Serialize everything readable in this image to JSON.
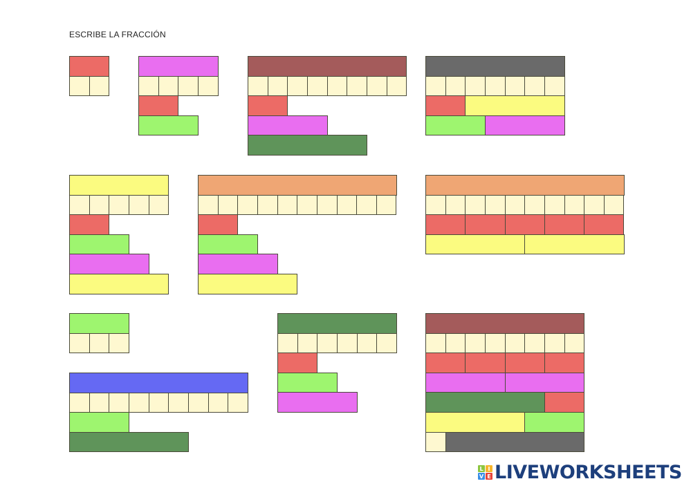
{
  "title": "ESCRIBE LA FRACCIÓN",
  "colors": {
    "red": "#ec6b66",
    "magenta": "#e96ef0",
    "green": "#9ef56f",
    "brown": "#a45b5b",
    "gray": "#6a6a6a",
    "darkgreen": "#5f945a",
    "yellow": "#fbfb80",
    "orange": "#efa674",
    "blue": "#6569f3",
    "cream": "#fef8d0"
  },
  "groups": [
    {
      "rows": [
        [
          [
            2,
            "red"
          ]
        ],
        [
          [
            1,
            "cream"
          ],
          [
            1,
            "cream"
          ]
        ]
      ]
    },
    {
      "rows": [
        [
          [
            4,
            "magenta"
          ]
        ],
        [
          [
            1,
            "cream"
          ],
          [
            1,
            "cream"
          ],
          [
            1,
            "cream"
          ],
          [
            1,
            "cream"
          ]
        ],
        [
          [
            2,
            "red"
          ]
        ],
        [
          [
            3,
            "green"
          ]
        ]
      ]
    },
    {
      "rows": [
        [
          [
            8,
            "brown"
          ]
        ],
        [
          [
            1,
            "cream"
          ],
          [
            1,
            "cream"
          ],
          [
            1,
            "cream"
          ],
          [
            1,
            "cream"
          ],
          [
            1,
            "cream"
          ],
          [
            1,
            "cream"
          ],
          [
            1,
            "cream"
          ],
          [
            1,
            "cream"
          ]
        ],
        [
          [
            2,
            "red"
          ]
        ],
        [
          [
            4,
            "magenta"
          ]
        ],
        [
          [
            6,
            "darkgreen"
          ]
        ]
      ]
    },
    {
      "rows": [
        [
          [
            7,
            "gray"
          ]
        ],
        [
          [
            1,
            "cream"
          ],
          [
            1,
            "cream"
          ],
          [
            1,
            "cream"
          ],
          [
            1,
            "cream"
          ],
          [
            1,
            "cream"
          ],
          [
            1,
            "cream"
          ],
          [
            1,
            "cream"
          ]
        ],
        [
          [
            2,
            "red"
          ],
          [
            5,
            "yellow"
          ]
        ],
        [
          [
            3,
            "green"
          ],
          [
            4,
            "magenta"
          ]
        ]
      ]
    },
    {
      "rows": [
        [
          [
            5,
            "yellow"
          ]
        ],
        [
          [
            1,
            "cream"
          ],
          [
            1,
            "cream"
          ],
          [
            1,
            "cream"
          ],
          [
            1,
            "cream"
          ],
          [
            1,
            "cream"
          ]
        ],
        [
          [
            2,
            "red"
          ]
        ],
        [
          [
            3,
            "green"
          ]
        ],
        [
          [
            4,
            "magenta"
          ]
        ],
        [
          [
            5,
            "yellow"
          ]
        ]
      ]
    },
    {
      "rows": [
        [
          [
            10,
            "orange"
          ]
        ],
        [
          [
            1,
            "cream"
          ],
          [
            1,
            "cream"
          ],
          [
            1,
            "cream"
          ],
          [
            1,
            "cream"
          ],
          [
            1,
            "cream"
          ],
          [
            1,
            "cream"
          ],
          [
            1,
            "cream"
          ],
          [
            1,
            "cream"
          ],
          [
            1,
            "cream"
          ],
          [
            1,
            "cream"
          ]
        ],
        [
          [
            2,
            "red"
          ]
        ],
        [
          [
            3,
            "green"
          ]
        ],
        [
          [
            4,
            "magenta"
          ]
        ],
        [
          [
            5,
            "yellow"
          ]
        ]
      ]
    },
    {
      "rows": [
        [
          [
            10,
            "orange"
          ]
        ],
        [
          [
            1,
            "cream"
          ],
          [
            1,
            "cream"
          ],
          [
            1,
            "cream"
          ],
          [
            1,
            "cream"
          ],
          [
            1,
            "cream"
          ],
          [
            1,
            "cream"
          ],
          [
            1,
            "cream"
          ],
          [
            1,
            "cream"
          ],
          [
            1,
            "cream"
          ],
          [
            1,
            "cream"
          ]
        ],
        [
          [
            2,
            "red"
          ],
          [
            2,
            "red"
          ],
          [
            2,
            "red"
          ],
          [
            2,
            "red"
          ],
          [
            2,
            "red"
          ]
        ],
        [
          [
            5,
            "yellow"
          ],
          [
            5,
            "yellow"
          ]
        ]
      ]
    },
    {
      "rows": [
        [
          [
            3,
            "green"
          ]
        ],
        [
          [
            1,
            "cream"
          ],
          [
            1,
            "cream"
          ],
          [
            1,
            "cream"
          ]
        ]
      ]
    },
    {
      "rows": [
        [
          [
            9,
            "blue"
          ]
        ],
        [
          [
            1,
            "cream"
          ],
          [
            1,
            "cream"
          ],
          [
            1,
            "cream"
          ],
          [
            1,
            "cream"
          ],
          [
            1,
            "cream"
          ],
          [
            1,
            "cream"
          ],
          [
            1,
            "cream"
          ],
          [
            1,
            "cream"
          ],
          [
            1,
            "cream"
          ]
        ],
        [
          [
            3,
            "green"
          ]
        ],
        [
          [
            6,
            "darkgreen"
          ]
        ]
      ]
    },
    {
      "rows": [
        [
          [
            6,
            "darkgreen"
          ]
        ],
        [
          [
            1,
            "cream"
          ],
          [
            1,
            "cream"
          ],
          [
            1,
            "cream"
          ],
          [
            1,
            "cream"
          ],
          [
            1,
            "cream"
          ],
          [
            1,
            "cream"
          ]
        ],
        [
          [
            2,
            "red"
          ]
        ],
        [
          [
            3,
            "green"
          ]
        ],
        [
          [
            4,
            "magenta"
          ]
        ]
      ]
    },
    {
      "rows": [
        [
          [
            8,
            "brown"
          ]
        ],
        [
          [
            1,
            "cream"
          ],
          [
            1,
            "cream"
          ],
          [
            1,
            "cream"
          ],
          [
            1,
            "cream"
          ],
          [
            1,
            "cream"
          ],
          [
            1,
            "cream"
          ],
          [
            1,
            "cream"
          ],
          [
            1,
            "cream"
          ]
        ],
        [
          [
            2,
            "red"
          ],
          [
            2,
            "red"
          ],
          [
            2,
            "red"
          ],
          [
            2,
            "red"
          ]
        ],
        [
          [
            4,
            "magenta"
          ],
          [
            4,
            "magenta"
          ]
        ],
        [
          [
            6,
            "darkgreen"
          ],
          [
            2,
            "red"
          ]
        ],
        [
          [
            5,
            "yellow"
          ],
          [
            3,
            "green"
          ]
        ],
        [
          [
            1,
            "cream"
          ],
          [
            7,
            "gray"
          ]
        ]
      ]
    }
  ],
  "logo": {
    "tiles": [
      "L",
      "I",
      "V",
      "E"
    ],
    "text": "LIVEWORKSHEETS"
  }
}
